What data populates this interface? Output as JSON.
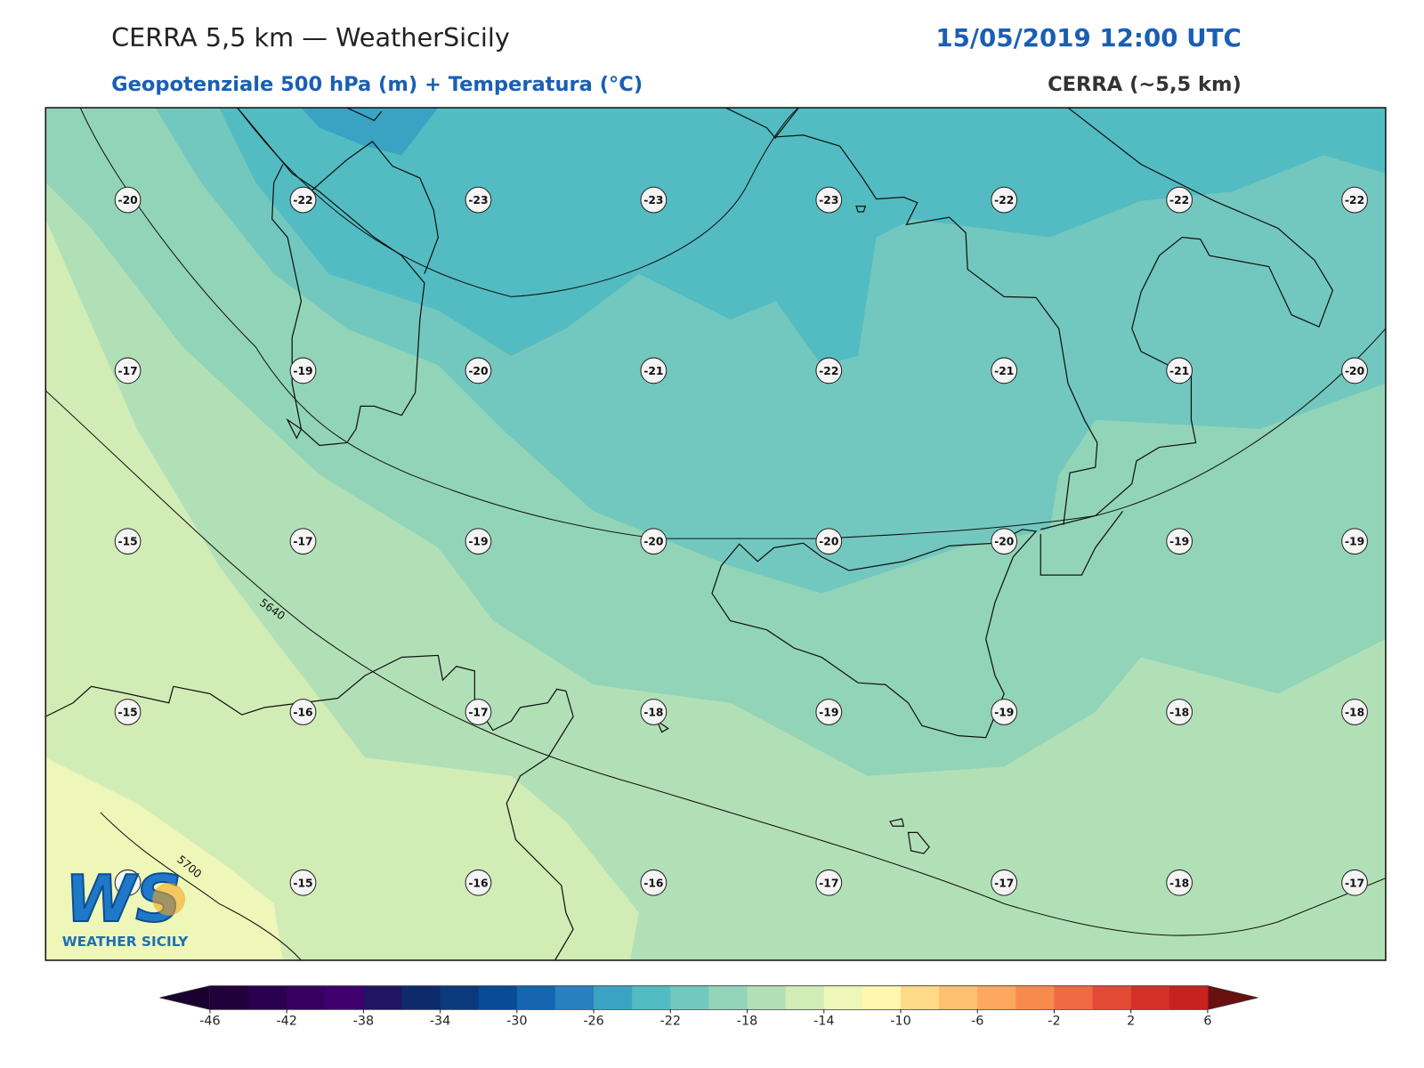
{
  "header": {
    "title": "CERRA 5,5 km — WeatherSicily",
    "datetime": "15/05/2019 12:00 UTC",
    "subtitle": "Geopotenziale 500 hPa (m) + Temperatura (°C)",
    "model": "CERRA (~5,5 km)"
  },
  "map": {
    "temperature_grid": [
      [
        -20,
        -22,
        -23,
        -23,
        -23,
        -22,
        -22,
        -22
      ],
      [
        -17,
        -19,
        -20,
        -21,
        -22,
        -21,
        -21,
        -20
      ],
      [
        -15,
        -17,
        -19,
        -20,
        -20,
        -20,
        -19,
        -19
      ],
      [
        -15,
        -16,
        -17,
        -18,
        -19,
        -19,
        -18,
        -18
      ],
      [
        null,
        -15,
        -16,
        -16,
        -17,
        -17,
        -18,
        -17
      ]
    ],
    "contour_labels": [
      "5640",
      "5700"
    ]
  },
  "logo": {
    "mark": "WS",
    "text": "WEATHER SICILY"
  },
  "colorbar": {
    "levels": [
      -46,
      -44,
      -42,
      -40,
      -38,
      -36,
      -34,
      -32,
      -30,
      -28,
      -26,
      -24,
      -22,
      -20,
      -18,
      -16,
      -14,
      -12,
      -10,
      -8,
      -6,
      -4,
      -2,
      0,
      2,
      4,
      6
    ],
    "colors": [
      "#22003a",
      "#2a0050",
      "#350060",
      "#40006e",
      "#201463",
      "#0d2a6a",
      "#0b3a7c",
      "#084a94",
      "#1565b0",
      "#2a7fbf",
      "#3aa3c3",
      "#52bcc2",
      "#72c8be",
      "#92d4b8",
      "#b2e0b6",
      "#d2ecb6",
      "#eef7b8",
      "#fff7b0",
      "#fed988",
      "#febf70",
      "#fca85e",
      "#f88a4e",
      "#f06a42",
      "#e24a35",
      "#d43028",
      "#c8221f"
    ],
    "extend_colors": [
      "#1a0030",
      "#6b1010"
    ],
    "ticks": [
      -46,
      -42,
      -38,
      -34,
      -30,
      -26,
      -22,
      -18,
      -14,
      -10,
      -6,
      -2,
      2,
      6
    ]
  }
}
